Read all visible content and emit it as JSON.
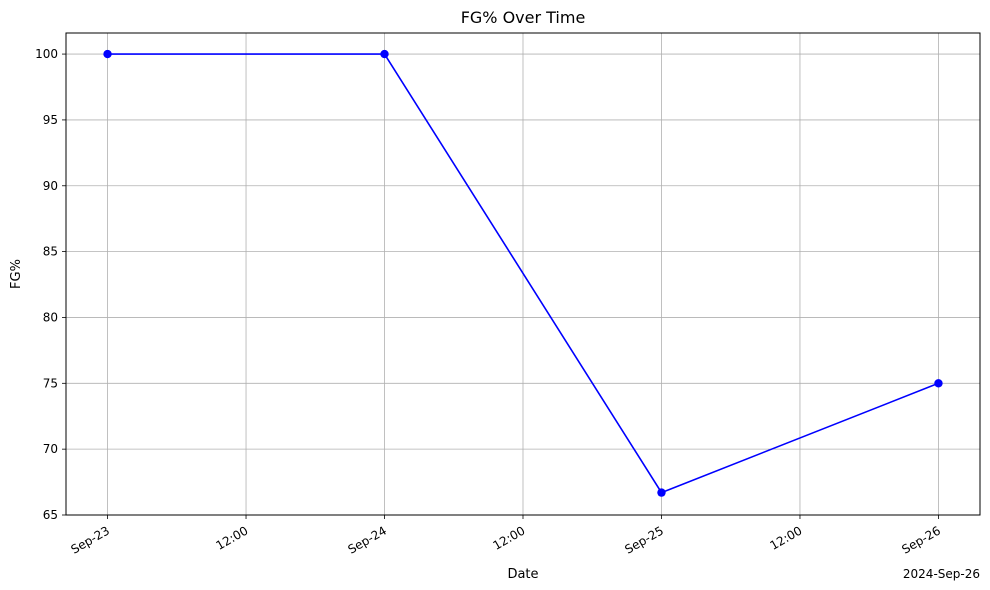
{
  "chart_data": {
    "type": "line",
    "title": "FG% Over Time",
    "xlabel": "Date",
    "ylabel": "FG%",
    "x_offset_label": "2024-Sep-26",
    "x": [
      "2024-09-23",
      "2024-09-24",
      "2024-09-25",
      "2024-09-26"
    ],
    "series": [
      {
        "values": [
          100.0,
          100.0,
          66.7,
          75.0
        ],
        "color": "#0000ff",
        "marker": "circle"
      }
    ],
    "ylim": [
      65,
      101.6
    ],
    "xlim": [
      "2024-09-22T20:24",
      "2024-09-26T03:36"
    ],
    "yticks": [
      65,
      70,
      75,
      80,
      85,
      90,
      95,
      100
    ],
    "xticks": [
      {
        "at": "2024-09-23T00:00",
        "label": "Sep-23"
      },
      {
        "at": "2024-09-23T12:00",
        "label": "12:00"
      },
      {
        "at": "2024-09-24T00:00",
        "label": "Sep-24"
      },
      {
        "at": "2024-09-24T12:00",
        "label": "12:00"
      },
      {
        "at": "2024-09-25T00:00",
        "label": "Sep-25"
      },
      {
        "at": "2024-09-25T12:00",
        "label": "12:00"
      },
      {
        "at": "2024-09-26T00:00",
        "label": "Sep-26"
      }
    ],
    "grid": true,
    "legend": "none"
  }
}
